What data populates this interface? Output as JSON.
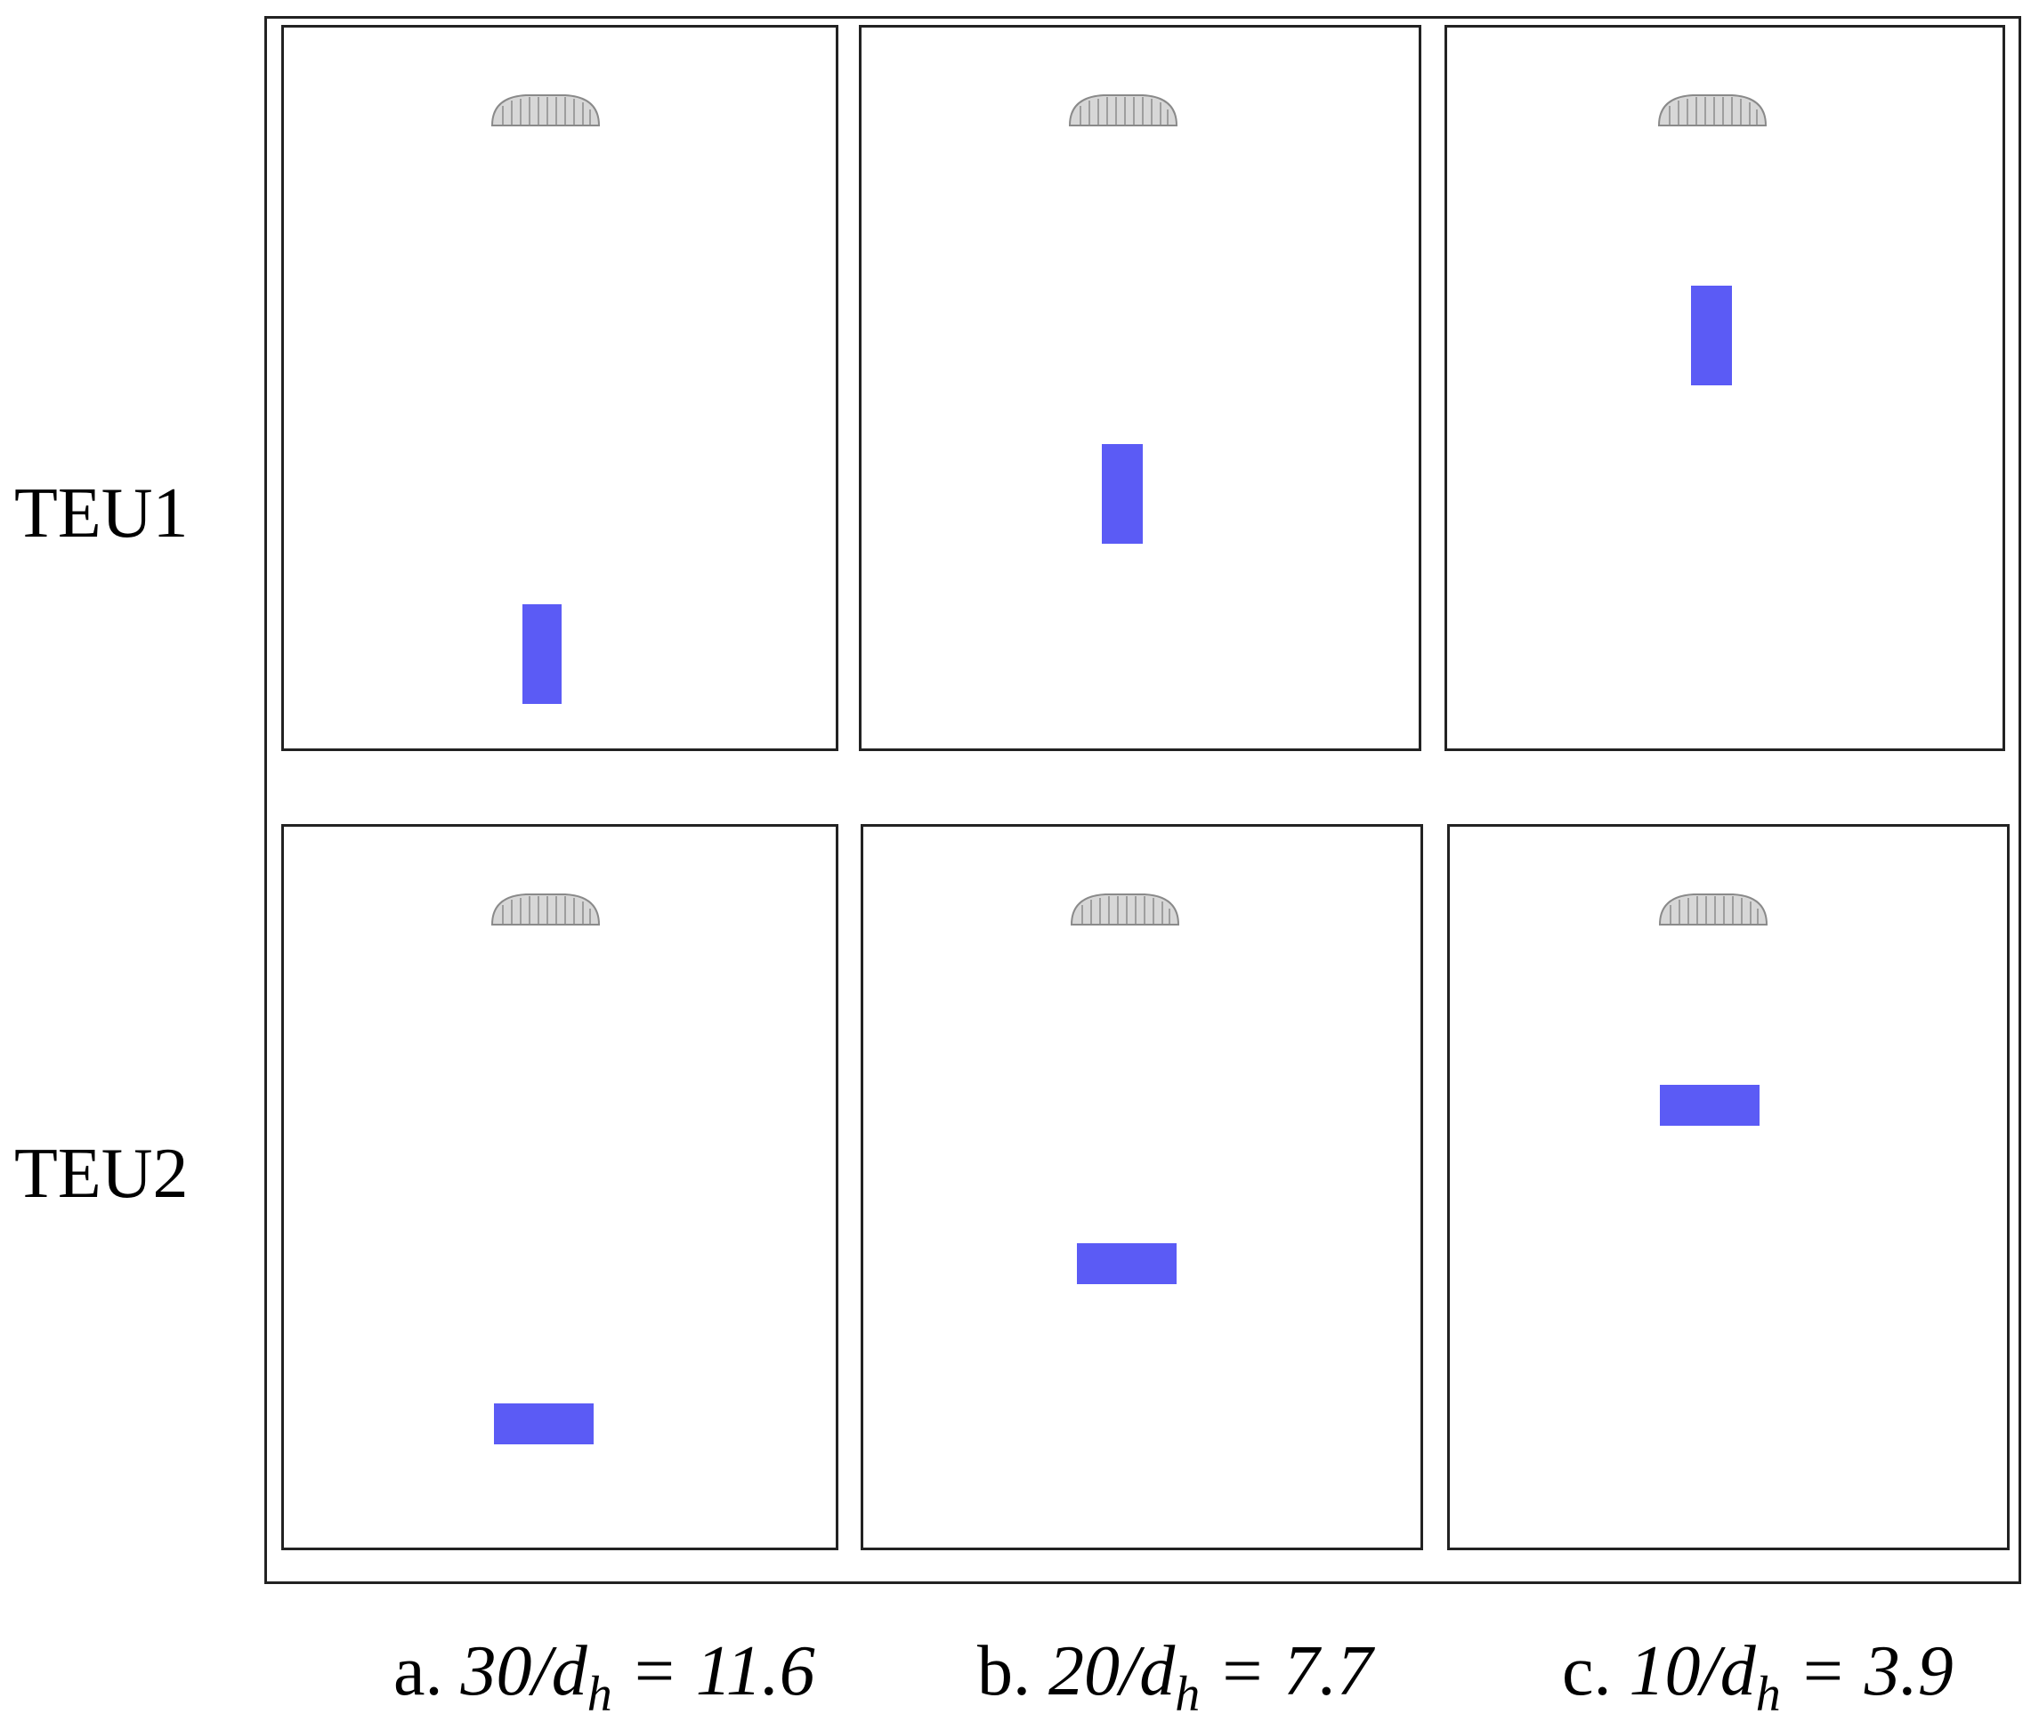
{
  "figure": {
    "rows": [
      {
        "label": "TEU1",
        "target_orientation": "vertical"
      },
      {
        "label": "TEU2",
        "target_orientation": "horizontal"
      }
    ],
    "columns": [
      {
        "prefix": "a.",
        "numerator": "30/d",
        "subscript": "h",
        "value": "= 11.6"
      },
      {
        "prefix": "b.",
        "numerator": "20/d",
        "subscript": "h",
        "value": "= 7.7"
      },
      {
        "prefix": "c.",
        "numerator": "10/d",
        "subscript": "h",
        "value": "= 3.9"
      }
    ],
    "colors": {
      "target": "#5b5bf5",
      "nozzle": "#8a8a8a",
      "frame": "#222222"
    }
  }
}
